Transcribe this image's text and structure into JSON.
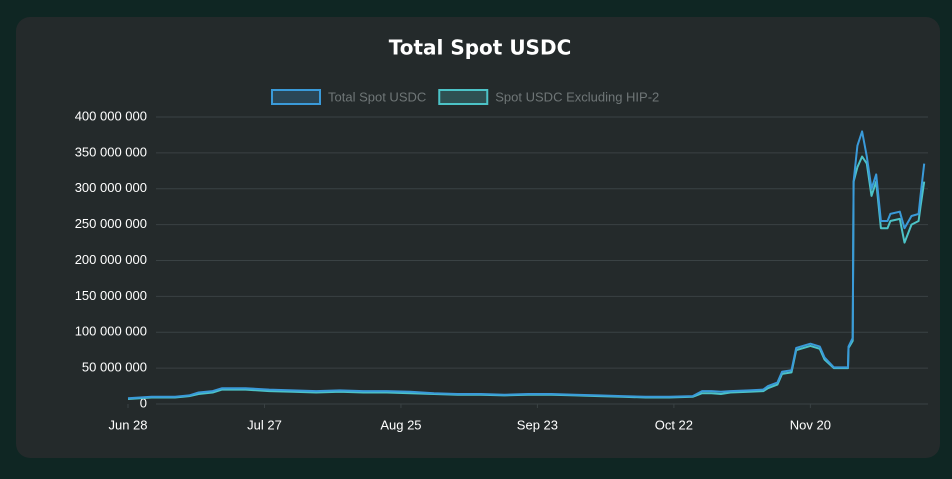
{
  "chart_data": {
    "type": "line",
    "title": "Total Spot USDC",
    "x": [
      0,
      5,
      10,
      13,
      15,
      18,
      20,
      25,
      30,
      35,
      40,
      45,
      50,
      55,
      60,
      65,
      70,
      75,
      80,
      85,
      90,
      95,
      100,
      105,
      110,
      115,
      120,
      122,
      124,
      126,
      128,
      132,
      135,
      136,
      138,
      139,
      141,
      142,
      145,
      147,
      148,
      150,
      153,
      153.1,
      154,
      154.2,
      155,
      156,
      157,
      158,
      159,
      160,
      161.4,
      162,
      164,
      165,
      166.5,
      168,
      168.4,
      169.2
    ],
    "series": [
      {
        "name": "Total Spot USDC",
        "color": "#3a9ad9",
        "values": [
          8000000,
          10000000,
          10000000,
          12000000,
          16000000,
          18000000,
          22000000,
          22000000,
          20000000,
          19000000,
          18000000,
          19000000,
          18000000,
          18000000,
          17000000,
          15000000,
          14000000,
          14000000,
          13000000,
          14000000,
          14000000,
          13000000,
          12000000,
          11000000,
          10000000,
          10000000,
          11000000,
          18000000,
          18000000,
          17000000,
          18000000,
          19000000,
          20000000,
          25000000,
          30000000,
          45000000,
          47000000,
          78000000,
          84000000,
          80000000,
          65000000,
          51000000,
          51000000,
          80000000,
          92000000,
          310000000,
          360000000,
          380000000,
          345000000,
          300000000,
          320000000,
          255000000,
          255000000,
          265000000,
          268000000,
          245000000,
          262000000,
          265000000,
          290000000,
          335000000
        ]
      },
      {
        "name": "Spot USDC Excluding HIP-2",
        "color": "#4cc3c7",
        "values": [
          7000000,
          9000000,
          9000000,
          11000000,
          14000000,
          16000000,
          20000000,
          20000000,
          18000000,
          17000000,
          16000000,
          17000000,
          16000000,
          16000000,
          15000000,
          14000000,
          13000000,
          13000000,
          12000000,
          13000000,
          13000000,
          12000000,
          11000000,
          10000000,
          9000000,
          9000000,
          10000000,
          15000000,
          15000000,
          14000000,
          16000000,
          17000000,
          18000000,
          22000000,
          27000000,
          42000000,
          44000000,
          75000000,
          81000000,
          77000000,
          62000000,
          50000000,
          50000000,
          78000000,
          88000000,
          310000000,
          330000000,
          345000000,
          335000000,
          290000000,
          310000000,
          245000000,
          245000000,
          255000000,
          258000000,
          225000000,
          250000000,
          255000000,
          275000000,
          310000000
        ]
      }
    ],
    "xlim": [
      0,
      170
    ],
    "xticks": [
      {
        "value": 0,
        "label": "Jun 28"
      },
      {
        "value": 29,
        "label": "Jul 27"
      },
      {
        "value": 58,
        "label": "Aug 25"
      },
      {
        "value": 87,
        "label": "Sep 23"
      },
      {
        "value": 116,
        "label": "Oct 22"
      },
      {
        "value": 145,
        "label": "Nov 20"
      }
    ],
    "ylim": [
      0,
      400000000
    ],
    "yticks": [
      0,
      {
        "value": 50000000,
        "label": "50 000 000"
      },
      {
        "value": 100000000,
        "label": "100 000 000"
      },
      {
        "value": 150000000,
        "label": "150 000 000"
      },
      {
        "value": 200000000,
        "label": "200 000 000"
      },
      {
        "value": 250000000,
        "label": "250 000 000"
      },
      {
        "value": 300000000,
        "label": "300 000 000"
      },
      {
        "value": 350000000,
        "label": "350 000 000"
      },
      {
        "value": 400000000,
        "label": "400 000 000"
      }
    ],
    "grid": true
  }
}
